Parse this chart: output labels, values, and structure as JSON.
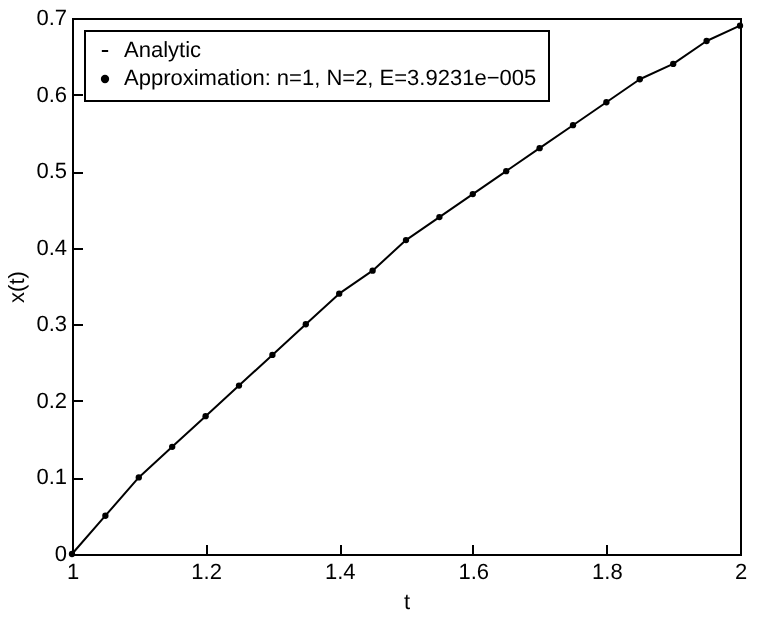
{
  "chart_data": {
    "type": "line",
    "xlabel": "t",
    "ylabel": "x(t)",
    "xlim": [
      1,
      2
    ],
    "ylim": [
      0,
      0.7
    ],
    "xticks": [
      1,
      1.2,
      1.4,
      1.6,
      1.8,
      2
    ],
    "yticks": [
      0,
      0.1,
      0.2,
      0.3,
      0.4,
      0.5,
      0.6,
      0.7
    ],
    "grid": false,
    "legend": "top left",
    "x": [
      1,
      1.05,
      1.1,
      1.15,
      1.2,
      1.25,
      1.3,
      1.35,
      1.4,
      1.45,
      1.5,
      1.55,
      1.6,
      1.65,
      1.7,
      1.75,
      1.8,
      1.85,
      1.9,
      1.95,
      2
    ],
    "series": [
      {
        "name": "Analytic",
        "type": "line",
        "color": "#000000",
        "line_style": "solid",
        "values": [
          0,
          0.05,
          0.1,
          0.14,
          0.18,
          0.22,
          0.26,
          0.3,
          0.34,
          0.37,
          0.41,
          0.44,
          0.47,
          0.5,
          0.53,
          0.56,
          0.59,
          0.62,
          0.64,
          0.67,
          0.69
        ]
      },
      {
        "name": "Approximation: n=1, N=2, E=3.9231e−005",
        "type": "scatter",
        "marker": "circle",
        "color": "#000000",
        "values": [
          0,
          0.05,
          0.1,
          0.14,
          0.18,
          0.22,
          0.26,
          0.3,
          0.34,
          0.37,
          0.41,
          0.44,
          0.47,
          0.5,
          0.53,
          0.56,
          0.59,
          0.62,
          0.64,
          0.67,
          0.69
        ]
      }
    ]
  }
}
